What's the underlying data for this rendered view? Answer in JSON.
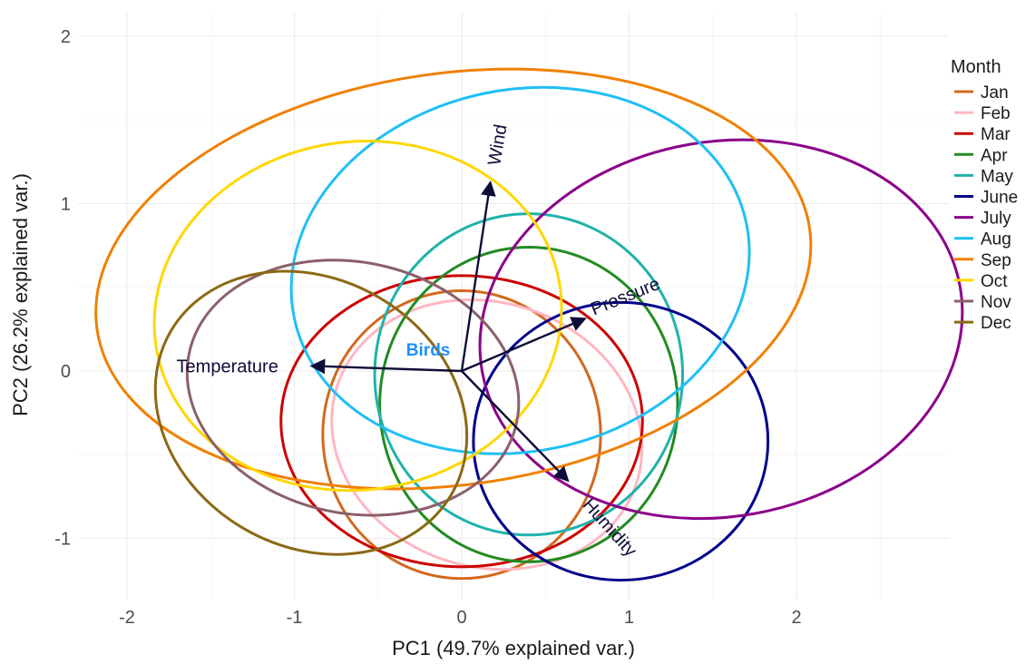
{
  "chart_data": {
    "type": "scatter",
    "subtype": "pca-biplot",
    "title": "",
    "xlabel": "PC1 (49.7% explained var.)",
    "ylabel": "PC2 (26.2% explained var.)",
    "xlim": [
      -2.25,
      2.9
    ],
    "ylim": [
      -1.32,
      2.08
    ],
    "x_ticks": [
      -2,
      -1,
      0,
      1,
      2
    ],
    "y_ticks": [
      -1,
      0,
      1,
      2
    ],
    "grid": true,
    "legend": {
      "title": "Month",
      "placement": "right"
    },
    "series": [
      {
        "name": "Jan",
        "color": "#D2691E",
        "ellipse": {
          "cx": 0.0,
          "cy": -0.38,
          "rx": 0.83,
          "ry": 0.86,
          "angle": 0
        }
      },
      {
        "name": "Feb",
        "color": "#FFB6C1",
        "ellipse": {
          "cx": 0.15,
          "cy": -0.38,
          "rx": 0.94,
          "ry": 0.79,
          "angle": -18
        }
      },
      {
        "name": "Mar",
        "color": "#CC0000",
        "ellipse": {
          "cx": 0.0,
          "cy": -0.3,
          "rx": 1.08,
          "ry": 0.87,
          "angle": 0
        }
      },
      {
        "name": "Apr",
        "color": "#228B22",
        "ellipse": {
          "cx": 0.4,
          "cy": -0.2,
          "rx": 0.89,
          "ry": 0.94,
          "angle": 0
        }
      },
      {
        "name": "May",
        "color": "#20B2AA",
        "ellipse": {
          "cx": 0.4,
          "cy": -0.02,
          "rx": 0.92,
          "ry": 0.96,
          "angle": 0
        }
      },
      {
        "name": "June",
        "color": "#00008B",
        "ellipse": {
          "cx": 0.95,
          "cy": -0.42,
          "rx": 0.88,
          "ry": 0.83,
          "angle": 0
        }
      },
      {
        "name": "July",
        "color": "#8B008B",
        "ellipse": {
          "cx": 1.55,
          "cy": 0.25,
          "rx": 1.45,
          "ry": 1.12,
          "angle": 10
        }
      },
      {
        "name": "Aug",
        "color": "#1FBFF5",
        "ellipse": {
          "cx": 0.35,
          "cy": 0.6,
          "rx": 1.38,
          "ry": 1.08,
          "angle": 12
        }
      },
      {
        "name": "Sep",
        "color": "#F08000",
        "ellipse": {
          "cx": -0.05,
          "cy": 0.55,
          "rx": 2.15,
          "ry": 1.23,
          "angle": 8
        }
      },
      {
        "name": "Oct",
        "color": "#FFD700",
        "ellipse": {
          "cx": -0.62,
          "cy": 0.33,
          "rx": 1.22,
          "ry": 1.04,
          "angle": 8
        }
      },
      {
        "name": "Nov",
        "color": "#8B5F6B",
        "ellipse": {
          "cx": -0.65,
          "cy": -0.1,
          "rx": 1.0,
          "ry": 0.75,
          "angle": -12
        }
      },
      {
        "name": "Dec",
        "color": "#8B6914",
        "ellipse": {
          "cx": -0.9,
          "cy": -0.25,
          "rx": 0.97,
          "ry": 0.8,
          "angle": -30
        }
      }
    ],
    "loadings": [
      {
        "name": "Wind",
        "x": 0.17,
        "y": 1.12,
        "label_x": 0.22,
        "label_y": 1.35,
        "label_angle": -80
      },
      {
        "name": "Pressure",
        "x": 0.73,
        "y": 0.31,
        "label_x": 0.98,
        "label_y": 0.44,
        "label_angle": -22
      },
      {
        "name": "Temperature",
        "x": -0.89,
        "y": 0.03,
        "label_x": -1.4,
        "label_y": 0.02,
        "label_angle": 0
      },
      {
        "name": "Humidity",
        "x": 0.63,
        "y": -0.65,
        "label_x": 0.88,
        "label_y": -0.94,
        "label_angle": 48
      }
    ],
    "points": [
      {
        "label": "Birds",
        "x": -0.2,
        "y": 0.12,
        "color": "#1E90FF"
      }
    ]
  }
}
